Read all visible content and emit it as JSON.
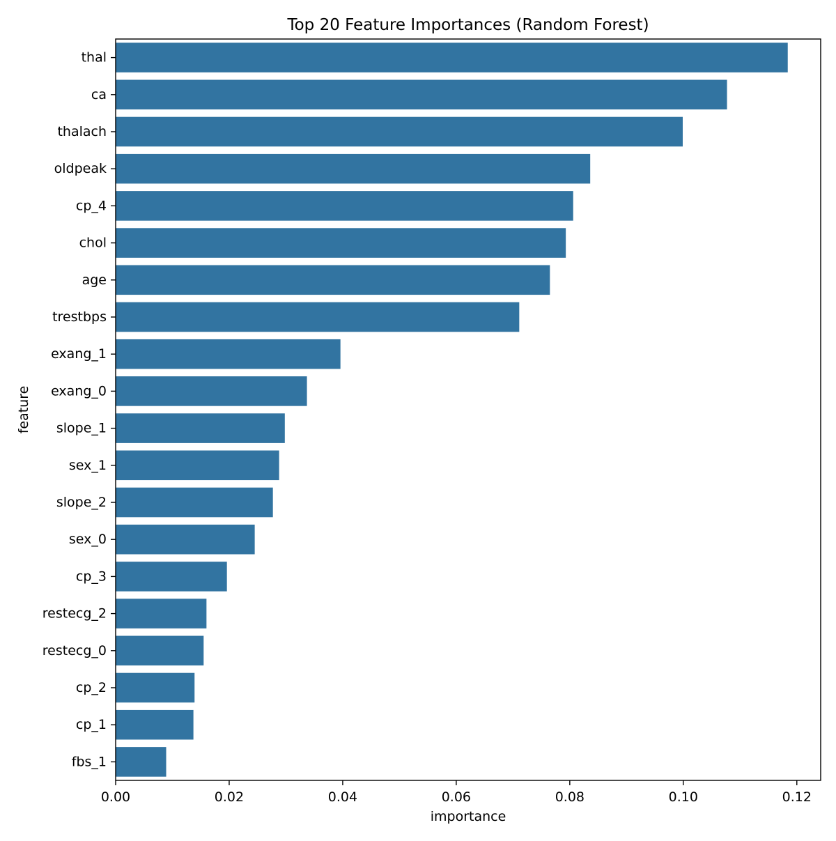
{
  "chart_data": {
    "type": "bar",
    "orientation": "horizontal",
    "title": "Top 20 Feature Importances (Random Forest)",
    "xlabel": "importance",
    "ylabel": "feature",
    "categories": [
      "thal",
      "ca",
      "thalach",
      "oldpeak",
      "cp_4",
      "chol",
      "age",
      "trestbps",
      "exang_1",
      "exang_0",
      "slope_1",
      "sex_1",
      "slope_2",
      "sex_0",
      "cp_3",
      "restecg_2",
      "restecg_0",
      "cp_2",
      "cp_1",
      "fbs_1"
    ],
    "values": [
      0.1184,
      0.1077,
      0.0999,
      0.0836,
      0.0806,
      0.0793,
      0.0765,
      0.0711,
      0.0396,
      0.0337,
      0.0298,
      0.0288,
      0.0277,
      0.0245,
      0.0196,
      0.016,
      0.0155,
      0.0139,
      0.0137,
      0.0089
    ],
    "xlim": [
      0,
      0.1242
    ],
    "xticks": [
      0.0,
      0.02,
      0.04,
      0.06,
      0.08,
      0.1,
      0.12
    ],
    "xtick_labels": [
      "0.00",
      "0.02",
      "0.04",
      "0.06",
      "0.08",
      "0.10",
      "0.12"
    ],
    "grid": false,
    "bar_color": "#3274a1"
  }
}
